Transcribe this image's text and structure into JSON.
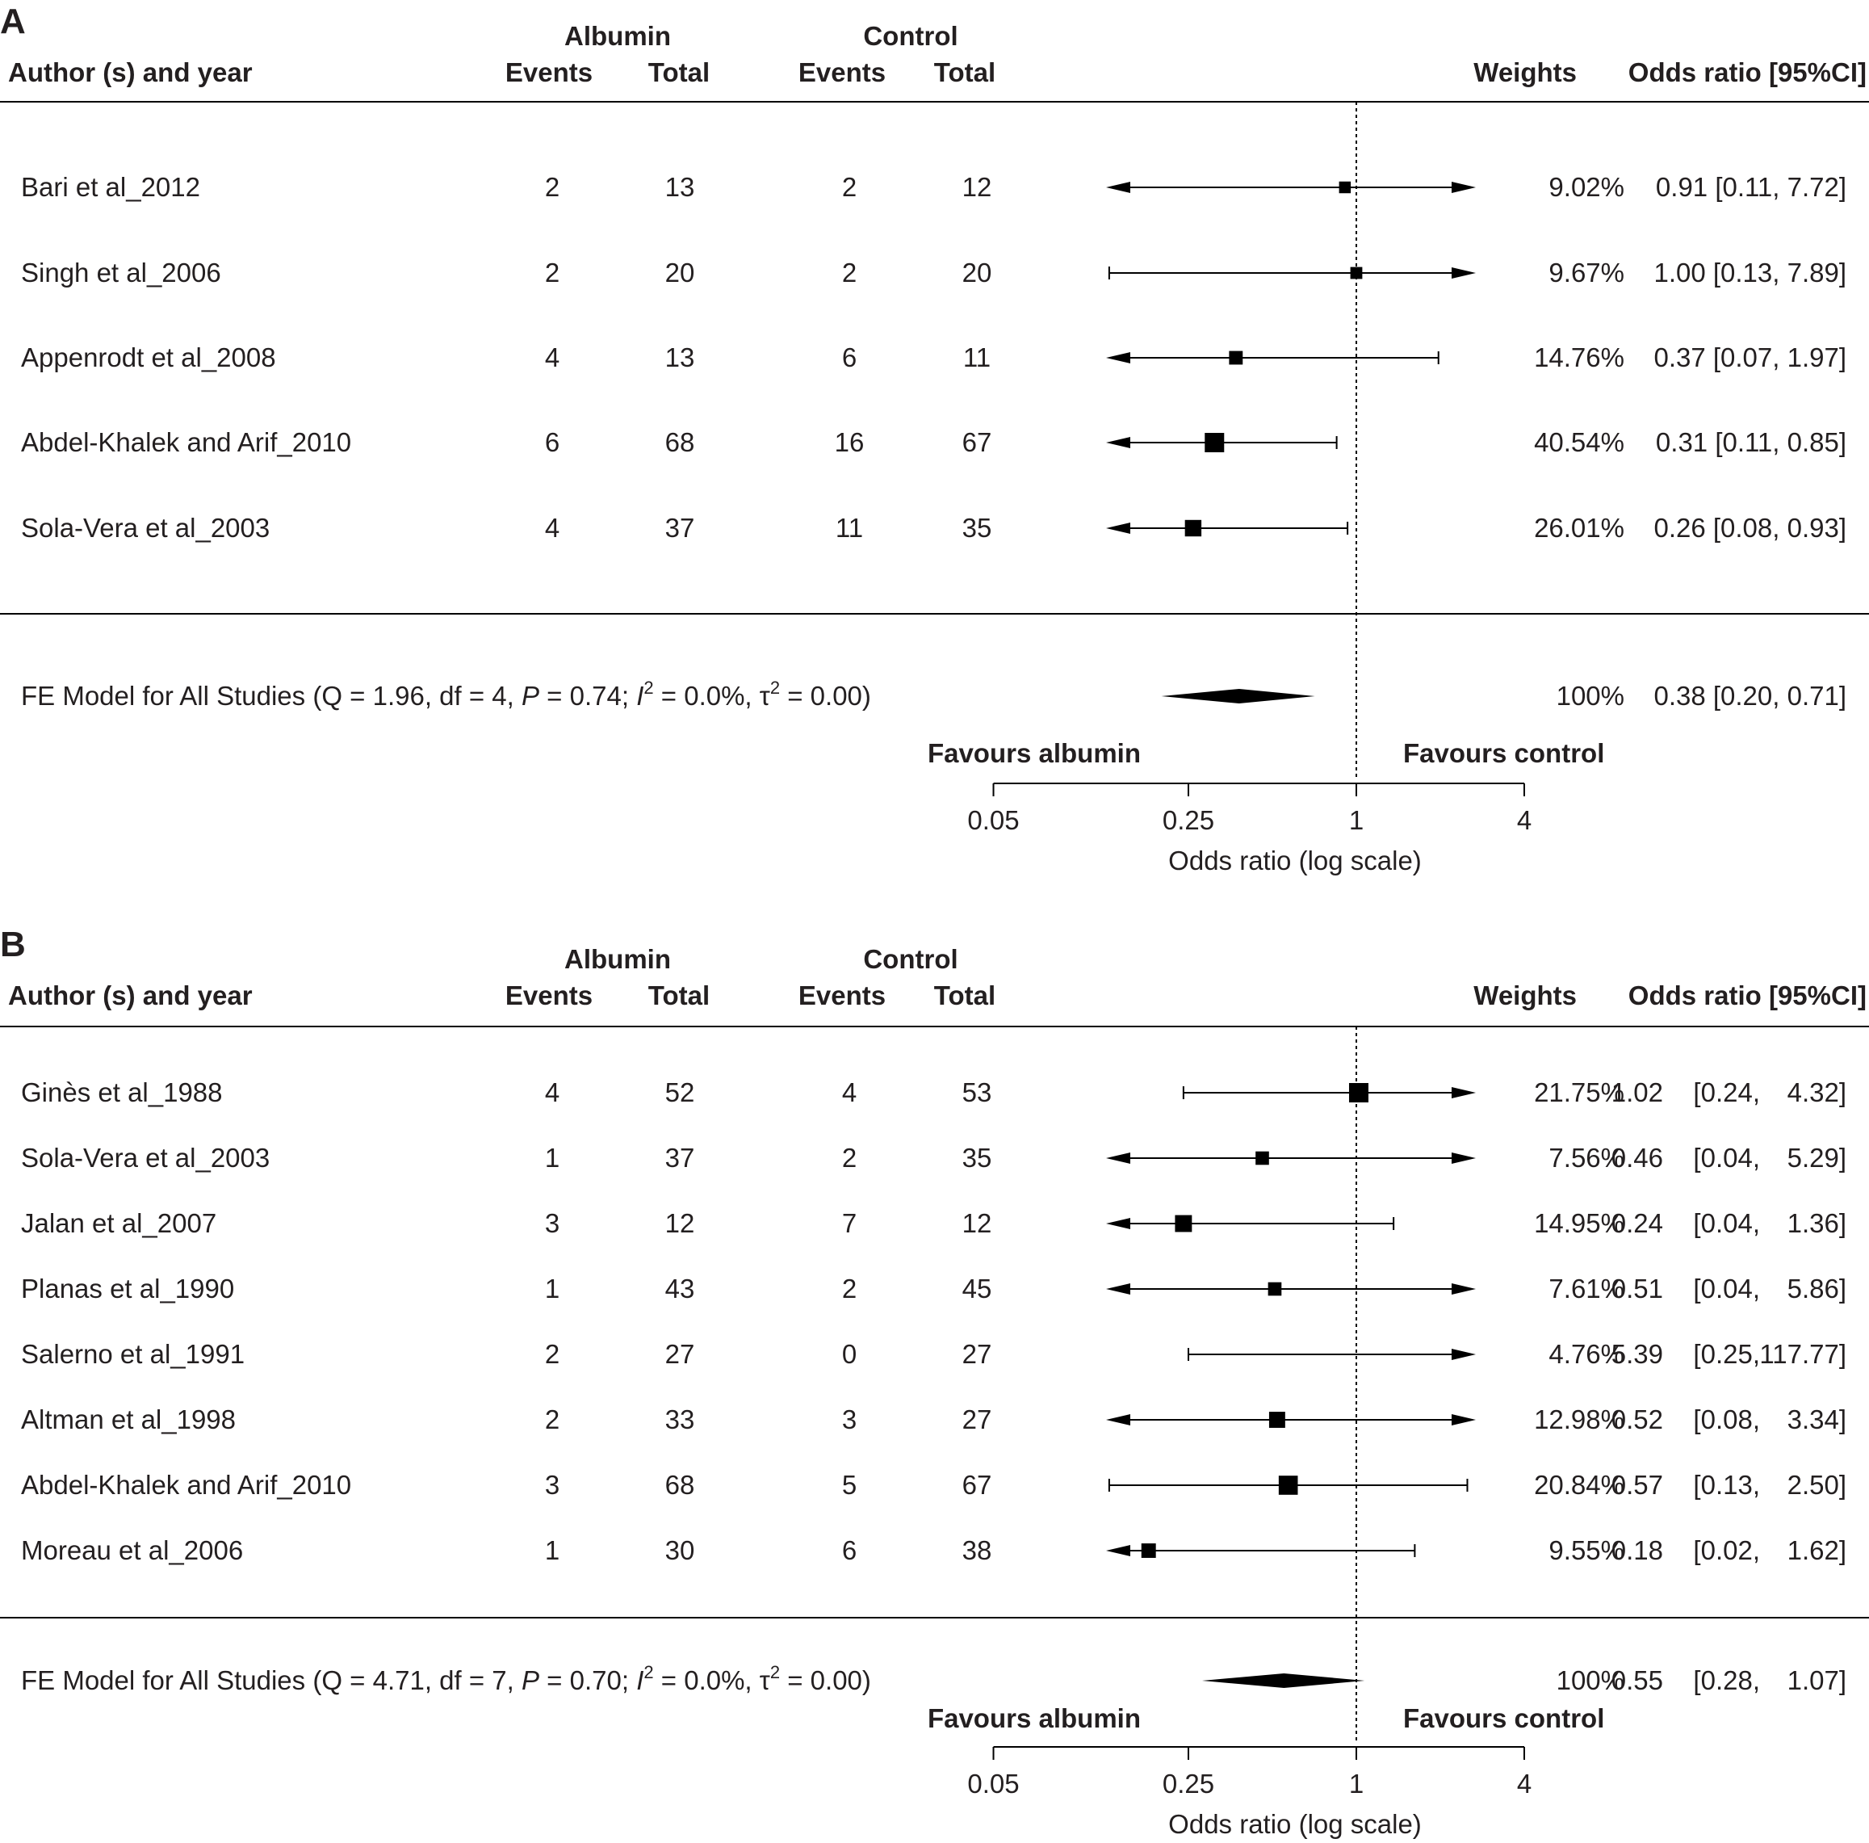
{
  "chart_data": [
    {
      "type": "forest",
      "panel_label": "A",
      "headers": {
        "study": "Author (s) and year",
        "group1": "Albumin",
        "group2": "Control",
        "events": "Events",
        "total": "Total",
        "weights": "Weights",
        "effect": "Odds ratio [95%CI]"
      },
      "studies": [
        {
          "name": "Bari et al_2012",
          "alb_events": "2",
          "alb_total": "13",
          "ctrl_events": "2",
          "ctrl_total": "12",
          "weight": "9.02%",
          "or_text": "0.91 [0.11, 7.72]",
          "or": 0.91,
          "lower": 0.11,
          "upper": 7.72
        },
        {
          "name": "Singh et al_2006",
          "alb_events": "2",
          "alb_total": "20",
          "ctrl_events": "2",
          "ctrl_total": "20",
          "weight": "9.67%",
          "or_text": "1.00 [0.13, 7.89]",
          "or": 1.0,
          "lower": 0.13,
          "upper": 7.89
        },
        {
          "name": "Appenrodt et al_2008",
          "alb_events": "4",
          "alb_total": "13",
          "ctrl_events": "6",
          "ctrl_total": "11",
          "weight": "14.76%",
          "or_text": "0.37 [0.07, 1.97]",
          "or": 0.37,
          "lower": 0.07,
          "upper": 1.97
        },
        {
          "name": "Abdel-Khalek and Arif_2010",
          "alb_events": "6",
          "alb_total": "68",
          "ctrl_events": "16",
          "ctrl_total": "67",
          "weight": "40.54%",
          "or_text": "0.31 [0.11, 0.85]",
          "or": 0.31,
          "lower": 0.11,
          "upper": 0.85
        },
        {
          "name": "Sola-Vera et al_2003",
          "alb_events": "4",
          "alb_total": "37",
          "ctrl_events": "11",
          "ctrl_total": "35",
          "weight": "26.01%",
          "or_text": "0.26 [0.08, 0.93]",
          "or": 0.26,
          "lower": 0.08,
          "upper": 0.93
        }
      ],
      "summary": {
        "label_pre": "FE Model for All Studies (Q = 1.96, df = 4, ",
        "p_symbol": "P",
        "p_text": " = 0.74; ",
        "i_symbol": "I",
        "sup": "2",
        "i_text": " = 0.0%, ",
        "tau_symbol": "τ",
        "tau_text": " = 0.00)",
        "weight": "100%",
        "or_text": "0.38 [0.20, 0.71]",
        "or": 0.38,
        "lower": 0.2,
        "upper": 0.71
      },
      "favours_left": "Favours albumin",
      "favours_right": "Favours control",
      "xaxis": {
        "scale": "log",
        "ticks": [
          0.05,
          0.25,
          1,
          4
        ],
        "tick_labels": [
          "0.05",
          "0.25",
          "1",
          "4"
        ],
        "label": "Odds ratio (log scale)",
        "xlim": [
          0.05,
          4
        ]
      }
    },
    {
      "type": "forest",
      "panel_label": "B",
      "headers": {
        "study": "Author (s) and year",
        "group1": "Albumin",
        "group2": "Control",
        "events": "Events",
        "total": "Total",
        "weights": "Weights",
        "effect": "Odds ratio [95%CI]"
      },
      "studies": [
        {
          "name": "Ginès et al_1988",
          "alb_events": "4",
          "alb_total": "52",
          "ctrl_events": "4",
          "ctrl_total": "53",
          "weight": "21.75%",
          "or_value": "1.02",
          "ci_low_text": "[0.24,",
          "ci_high_text": "4.32]",
          "or": 1.02,
          "lower": 0.24,
          "upper": 4.32
        },
        {
          "name": "Sola-Vera et al_2003",
          "alb_events": "1",
          "alb_total": "37",
          "ctrl_events": "2",
          "ctrl_total": "35",
          "weight": "7.56%",
          "or_value": "0.46",
          "ci_low_text": "[0.04,",
          "ci_high_text": "5.29]",
          "or": 0.46,
          "lower": 0.04,
          "upper": 5.29
        },
        {
          "name": "Jalan et al_2007",
          "alb_events": "3",
          "alb_total": "12",
          "ctrl_events": "7",
          "ctrl_total": "12",
          "weight": "14.95%",
          "or_value": "0.24",
          "ci_low_text": "[0.04,",
          "ci_high_text": "1.36]",
          "or": 0.24,
          "lower": 0.04,
          "upper": 1.36
        },
        {
          "name": "Planas et al_1990",
          "alb_events": "1",
          "alb_total": "43",
          "ctrl_events": "2",
          "ctrl_total": "45",
          "weight": "7.61%",
          "or_value": "0.51",
          "ci_low_text": "[0.04,",
          "ci_high_text": "5.86]",
          "or": 0.51,
          "lower": 0.04,
          "upper": 5.86
        },
        {
          "name": "Salerno et al_1991",
          "alb_events": "2",
          "alb_total": "27",
          "ctrl_events": "0",
          "ctrl_total": "27",
          "weight": "4.76%",
          "or_value": "5.39",
          "ci_low_text": "[0.25,",
          "ci_high_text": "117.77]",
          "or": 5.39,
          "lower": 0.25,
          "upper": 117.77
        },
        {
          "name": "Altman et al_1998",
          "alb_events": "2",
          "alb_total": "33",
          "ctrl_events": "3",
          "ctrl_total": "27",
          "weight": "12.98%",
          "or_value": "0.52",
          "ci_low_text": "[0.08,",
          "ci_high_text": "3.34]",
          "or": 0.52,
          "lower": 0.08,
          "upper": 3.34
        },
        {
          "name": "Abdel-Khalek and Arif_2010",
          "alb_events": "3",
          "alb_total": "68",
          "ctrl_events": "5",
          "ctrl_total": "67",
          "weight": "20.84%",
          "or_value": "0.57",
          "ci_low_text": "[0.13,",
          "ci_high_text": "2.50]",
          "or": 0.57,
          "lower": 0.13,
          "upper": 2.5
        },
        {
          "name": "Moreau et al_2006",
          "alb_events": "1",
          "alb_total": "30",
          "ctrl_events": "6",
          "ctrl_total": "38",
          "weight": "9.55%",
          "or_value": "0.18",
          "ci_low_text": "[0.02,",
          "ci_high_text": "1.62]",
          "or": 0.18,
          "lower": 0.02,
          "upper": 1.62
        }
      ],
      "summary": {
        "label_pre": "FE Model for All Studies (Q = 4.71, df = 7, ",
        "p_symbol": "P",
        "p_text": " = 0.70; ",
        "i_symbol": "I",
        "sup": "2",
        "i_text": " = 0.0%, ",
        "tau_symbol": "τ",
        "tau_text": " = 0.00)",
        "weight": "100%",
        "or_value": "0.55",
        "ci_low_text": "[0.28,",
        "ci_high_text": "1.07]",
        "or": 0.55,
        "lower": 0.28,
        "upper": 1.07
      },
      "favours_left": "Favours albumin",
      "favours_right": "Favours control",
      "xaxis": {
        "scale": "log",
        "ticks": [
          0.05,
          0.25,
          1,
          4
        ],
        "tick_labels": [
          "0.05",
          "0.25",
          "1",
          "4"
        ],
        "label": "Odds ratio (log scale)",
        "xlim": [
          0.05,
          4
        ]
      }
    }
  ]
}
